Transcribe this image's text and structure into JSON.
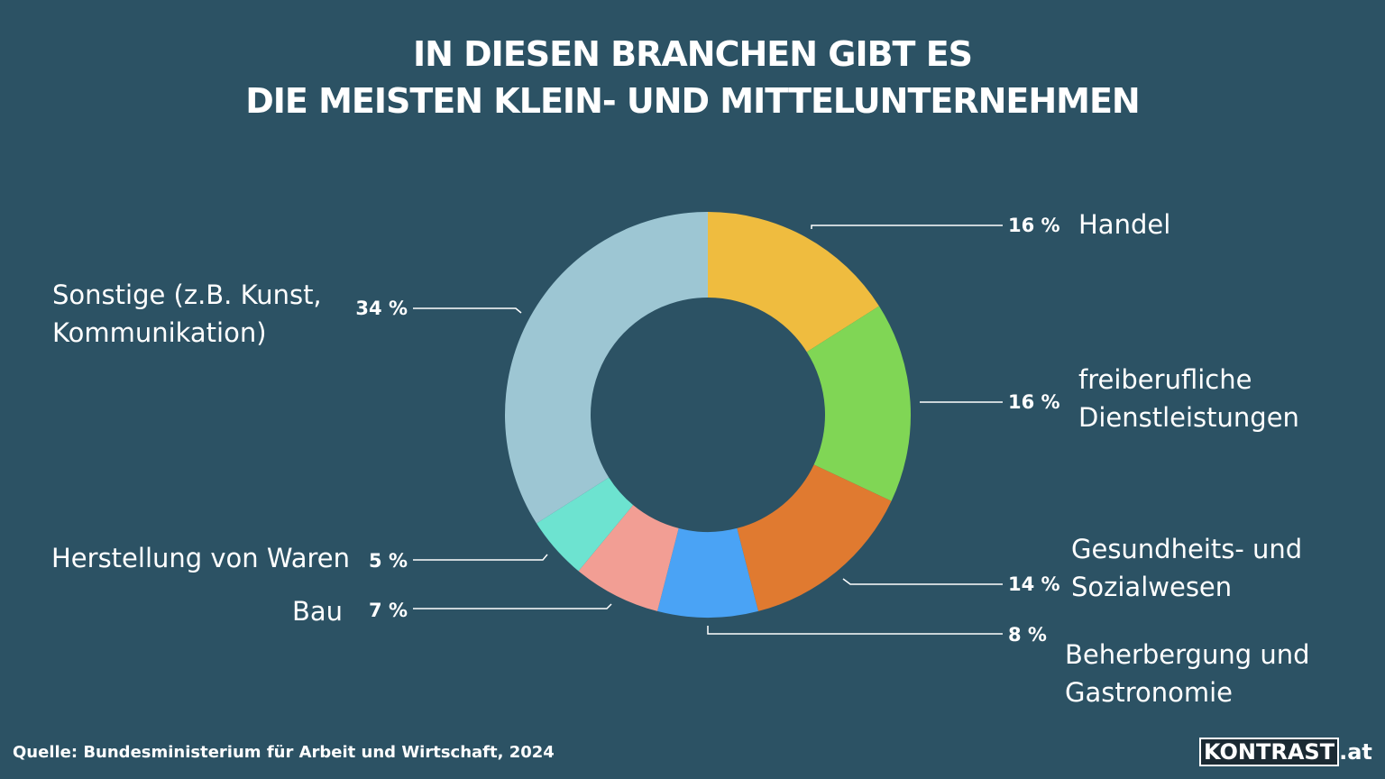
{
  "chart_data": {
    "type": "pie",
    "donut": true,
    "title": [
      "IN DIESEN BRANCHEN GIBT ES",
      "DIE MEISTEN  KLEIN- UND MITTELUNTERNEHMEN"
    ],
    "categories": [
      "Handel",
      "freiberufliche Dienstleistungen",
      "Gesundheits- und Sozialwesen",
      "Beherbergung und Gastronomie",
      "Bau",
      "Herstellung von Waren",
      "Sonstige (z.B. Kunst, Kommunikation)"
    ],
    "values": [
      16,
      16,
      14,
      8,
      7,
      5,
      34
    ],
    "value_labels": [
      "16 %",
      "16 %",
      "14 %",
      "8 %",
      "7 %",
      "5 %",
      "34 %"
    ],
    "colors": [
      "#efbc3f",
      "#80d655",
      "#e07a30",
      "#4aa3f5",
      "#f29e94",
      "#6de3d0",
      "#9dc6d3"
    ],
    "source": "Quelle: Bundesministerium für Arbeit und Wirtschaft, 2024",
    "logo": [
      "KONTRAST",
      ".at"
    ]
  }
}
